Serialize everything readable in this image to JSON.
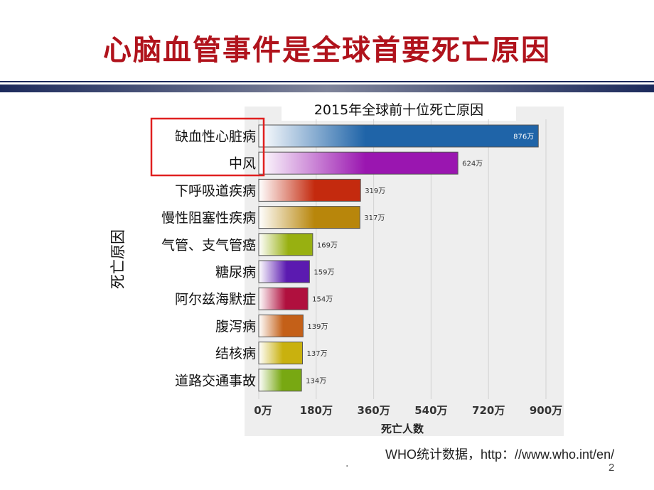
{
  "slide": {
    "title": "心脑血管事件是全球首要死亡原因",
    "source": "WHO统计数据，http：//www.who.int/en/",
    "bottom_mark": ".",
    "page_number": "2"
  },
  "colors": {
    "title": "#b0131c",
    "rule_dark": "#1c2a5c",
    "highlight_box": "#e02020",
    "bars": [
      "#1f64a8",
      "#9a16b0",
      "#c42a0e",
      "#b8860b",
      "#98b011",
      "#5b1ab0",
      "#b0103e",
      "#c46018",
      "#c9b10e",
      "#78a812"
    ]
  },
  "chart_data": {
    "type": "bar",
    "orientation": "horizontal",
    "title": "2015年全球前十位死亡原因",
    "ylabel": "死亡原因",
    "xlabel": "死亡人数",
    "categories": [
      "缺血性心脏病",
      "中风",
      "下呼吸道疾病",
      "慢性阻塞性疾病",
      "气管、支气管癌",
      "糖尿病",
      "阿尔兹海默症",
      "腹泻病",
      "结核病",
      "道路交通事故"
    ],
    "values": [
      876,
      624,
      319,
      317,
      169,
      159,
      154,
      139,
      137,
      134
    ],
    "value_labels": [
      "876万",
      "624万",
      "319万",
      "317万",
      "169万",
      "159万",
      "154万",
      "139万",
      "137万",
      "134万"
    ],
    "xticks": [
      0,
      180,
      360,
      540,
      720,
      900
    ],
    "xtick_labels": [
      "0万",
      "180万",
      "360万",
      "540万",
      "720万",
      "900万"
    ],
    "xlim": [
      0,
      900
    ],
    "grid": true,
    "highlighted_categories": [
      "缺血性心脏病",
      "中风"
    ]
  }
}
